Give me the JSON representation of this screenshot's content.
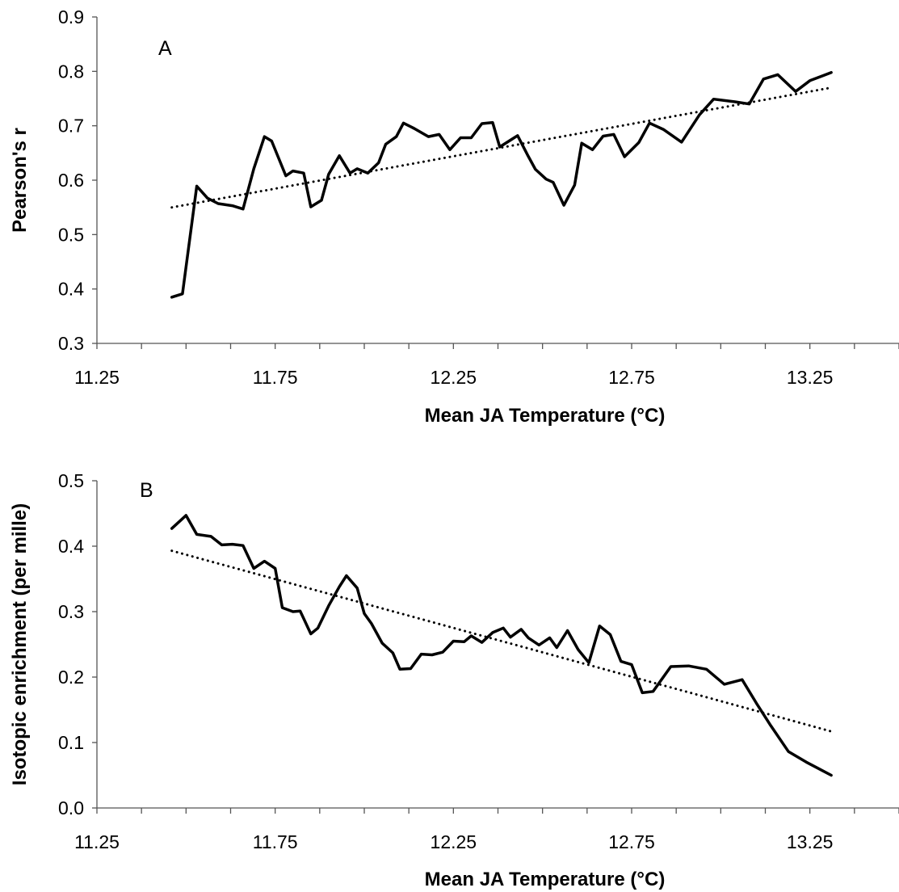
{
  "chart_data": [
    {
      "type": "line",
      "panel_label": "A",
      "xlabel": "Mean JA Temperature (°C)",
      "ylabel": "Pearson's r",
      "xlim": [
        11.25,
        13.5
      ],
      "ylim": [
        0.3,
        0.9
      ],
      "x_ticks": [
        "11.25",
        "11.75",
        "12.25",
        "12.75",
        "13.25"
      ],
      "y_ticks": [
        "0.3",
        "0.4",
        "0.5",
        "0.6",
        "0.7",
        "0.8",
        "0.9"
      ],
      "grid": false,
      "legend": "none",
      "series": [
        {
          "style": "solid",
          "points": [
            [
              11.46,
              0.385
            ],
            [
              11.49,
              0.391
            ],
            [
              11.53,
              0.589
            ],
            [
              11.56,
              0.567
            ],
            [
              11.59,
              0.557
            ],
            [
              11.63,
              0.553
            ],
            [
              11.66,
              0.547
            ],
            [
              11.69,
              0.621
            ],
            [
              11.72,
              0.68
            ],
            [
              11.74,
              0.672
            ],
            [
              11.78,
              0.608
            ],
            [
              11.8,
              0.617
            ],
            [
              11.83,
              0.613
            ],
            [
              11.85,
              0.551
            ],
            [
              11.88,
              0.563
            ],
            [
              11.9,
              0.611
            ],
            [
              11.93,
              0.645
            ],
            [
              11.96,
              0.613
            ],
            [
              11.98,
              0.621
            ],
            [
              12.01,
              0.613
            ],
            [
              12.04,
              0.632
            ],
            [
              12.06,
              0.666
            ],
            [
              12.09,
              0.68
            ],
            [
              12.11,
              0.705
            ],
            [
              12.14,
              0.695
            ],
            [
              12.18,
              0.68
            ],
            [
              12.21,
              0.684
            ],
            [
              12.24,
              0.656
            ],
            [
              12.27,
              0.678
            ],
            [
              12.3,
              0.678
            ],
            [
              12.33,
              0.704
            ],
            [
              12.36,
              0.706
            ],
            [
              12.38,
              0.661
            ],
            [
              12.43,
              0.682
            ],
            [
              12.46,
              0.644
            ],
            [
              12.48,
              0.62
            ],
            [
              12.51,
              0.602
            ],
            [
              12.53,
              0.596
            ],
            [
              12.56,
              0.554
            ],
            [
              12.59,
              0.591
            ],
            [
              12.61,
              0.668
            ],
            [
              12.64,
              0.656
            ],
            [
              12.67,
              0.681
            ],
            [
              12.7,
              0.684
            ],
            [
              12.73,
              0.643
            ],
            [
              12.77,
              0.669
            ],
            [
              12.8,
              0.705
            ],
            [
              12.84,
              0.693
            ],
            [
              12.89,
              0.67
            ],
            [
              12.94,
              0.72
            ],
            [
              12.98,
              0.749
            ],
            [
              13.04,
              0.744
            ],
            [
              13.08,
              0.74
            ],
            [
              13.12,
              0.786
            ],
            [
              13.16,
              0.794
            ],
            [
              13.21,
              0.763
            ],
            [
              13.25,
              0.783
            ],
            [
              13.31,
              0.798
            ]
          ]
        },
        {
          "style": "dotted",
          "note": "linear trend",
          "points": [
            [
              11.46,
              0.55
            ],
            [
              13.31,
              0.77
            ]
          ]
        }
      ]
    },
    {
      "type": "line",
      "panel_label": "B",
      "xlabel": "Mean JA Temperature (°C)",
      "ylabel": "Isotopic enrichment (per mille)",
      "xlim": [
        11.25,
        13.5
      ],
      "ylim": [
        0.0,
        0.5
      ],
      "x_ticks": [
        "11.25",
        "11.75",
        "12.25",
        "12.75",
        "13.25"
      ],
      "y_ticks": [
        "0.0",
        "0.1",
        "0.2",
        "0.3",
        "0.4",
        "0.5"
      ],
      "grid": false,
      "legend": "none",
      "series": [
        {
          "style": "solid",
          "points": [
            [
              11.46,
              0.427
            ],
            [
              11.5,
              0.447
            ],
            [
              11.53,
              0.418
            ],
            [
              11.57,
              0.415
            ],
            [
              11.6,
              0.402
            ],
            [
              11.63,
              0.403
            ],
            [
              11.66,
              0.401
            ],
            [
              11.69,
              0.366
            ],
            [
              11.72,
              0.377
            ],
            [
              11.75,
              0.366
            ],
            [
              11.77,
              0.306
            ],
            [
              11.8,
              0.3
            ],
            [
              11.82,
              0.301
            ],
            [
              11.85,
              0.266
            ],
            [
              11.87,
              0.275
            ],
            [
              11.9,
              0.309
            ],
            [
              11.93,
              0.338
            ],
            [
              11.95,
              0.355
            ],
            [
              11.98,
              0.336
            ],
            [
              12.0,
              0.297
            ],
            [
              12.02,
              0.282
            ],
            [
              12.05,
              0.252
            ],
            [
              12.08,
              0.237
            ],
            [
              12.1,
              0.212
            ],
            [
              12.13,
              0.213
            ],
            [
              12.16,
              0.235
            ],
            [
              12.19,
              0.234
            ],
            [
              12.22,
              0.238
            ],
            [
              12.25,
              0.255
            ],
            [
              12.28,
              0.254
            ],
            [
              12.3,
              0.263
            ],
            [
              12.33,
              0.253
            ],
            [
              12.36,
              0.268
            ],
            [
              12.39,
              0.275
            ],
            [
              12.41,
              0.261
            ],
            [
              12.44,
              0.273
            ],
            [
              12.46,
              0.26
            ],
            [
              12.49,
              0.249
            ],
            [
              12.52,
              0.26
            ],
            [
              12.54,
              0.245
            ],
            [
              12.57,
              0.271
            ],
            [
              12.6,
              0.242
            ],
            [
              12.63,
              0.222
            ],
            [
              12.66,
              0.278
            ],
            [
              12.69,
              0.265
            ],
            [
              12.72,
              0.224
            ],
            [
              12.75,
              0.219
            ],
            [
              12.78,
              0.176
            ],
            [
              12.81,
              0.178
            ],
            [
              12.86,
              0.216
            ],
            [
              12.91,
              0.217
            ],
            [
              12.96,
              0.212
            ],
            [
              13.01,
              0.189
            ],
            [
              13.06,
              0.196
            ],
            [
              13.1,
              0.16
            ],
            [
              13.14,
              0.126
            ],
            [
              13.19,
              0.086
            ],
            [
              13.24,
              0.07
            ],
            [
              13.31,
              0.05
            ]
          ]
        },
        {
          "style": "dotted",
          "note": "linear trend",
          "points": [
            [
              11.46,
              0.393
            ],
            [
              13.31,
              0.117
            ]
          ]
        }
      ]
    }
  ]
}
